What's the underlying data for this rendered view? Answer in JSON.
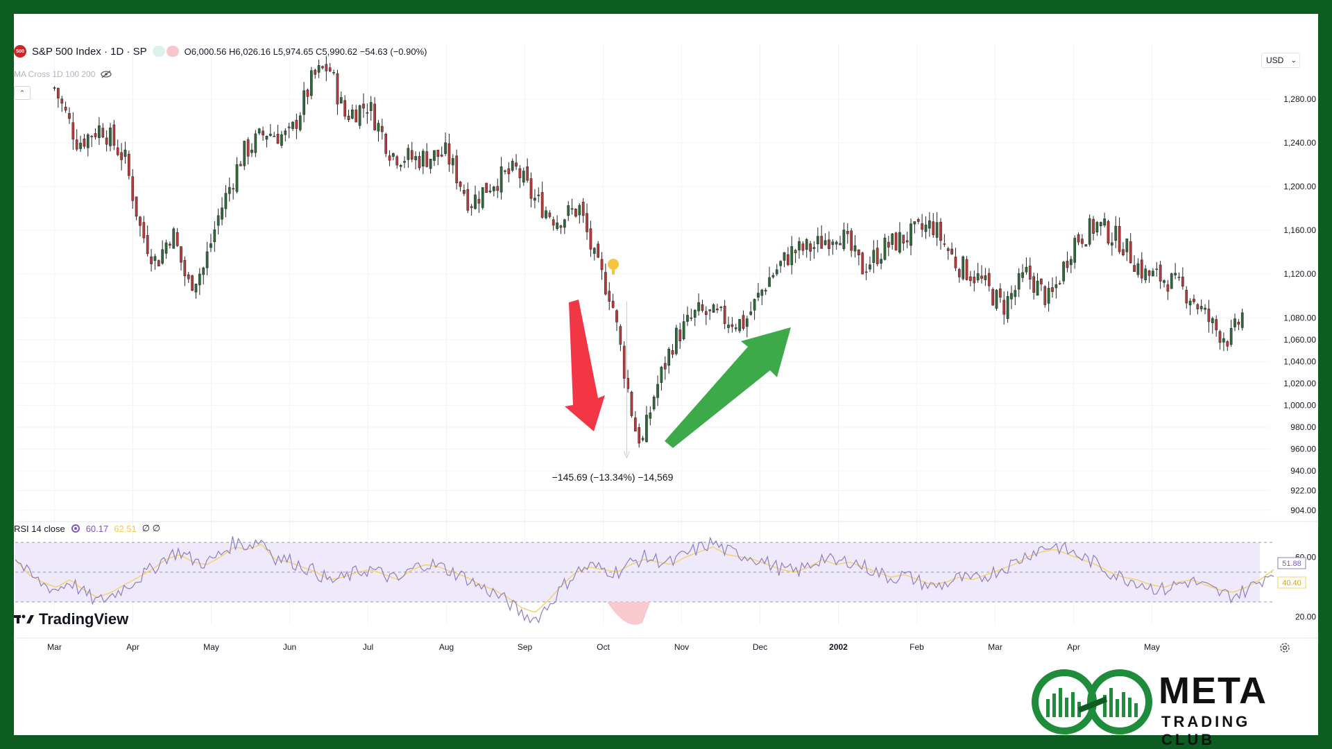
{
  "header": {
    "symbol_badge": "500",
    "symbol_title": "S&P 500 Index · 1D · SP",
    "ohlc": "O6,000.56  H6,026.16  L5,974.65  C5,990.62  −54.63 (−0.90%)",
    "indicator_label": "MA Cross 1D 100 200",
    "currency": "USD"
  },
  "annotation": {
    "measure_text": "−145.69 (−13.34%) −14,569"
  },
  "rsi": {
    "label": "RSI 14 close",
    "value1": "60.17",
    "value2": "62.51",
    "value3": "∅ ∅",
    "badge_rsi": "51.88",
    "badge_ma": "40.40"
  },
  "branding": {
    "tradingview": "TradingView",
    "meta_title": "META",
    "meta_subtitle": "TRADING CLUB"
  },
  "colors": {
    "up": "#2e6b3a",
    "down": "#b93a3a",
    "rsi_line": "#8e7cc3",
    "rsi_ma": "#f2d36b",
    "rsi_band": "#efeafb",
    "arrow_down": "#f23645",
    "arrow_up": "#3daa4a",
    "frame": "#0d5c22"
  },
  "chart_data": {
    "type": "candlestick",
    "title": "S&P 500 Index · 1D · SP",
    "x_ticks": [
      "Mar",
      "Apr",
      "May",
      "Jun",
      "Jul",
      "Aug",
      "Sep",
      "Oct",
      "Nov",
      "Dec",
      "2002",
      "Feb",
      "Mar",
      "Apr",
      "May"
    ],
    "y_ticks": [
      904,
      922,
      940,
      960,
      980,
      1000,
      1020,
      1040,
      1060,
      1080,
      1120,
      1160,
      1200,
      1240,
      1280
    ],
    "y_tick_labels": [
      "904.00",
      "922.00",
      "940.00",
      "960.00",
      "980.00",
      "1,000.00",
      "1,020.00",
      "1,040.00",
      "1,060.00",
      "1,080.00",
      "1,120.00",
      "1,160.00",
      "1,200.00",
      "1,240.00",
      "1,280.00"
    ],
    "ylim": [
      895,
      1330
    ],
    "close_path": [
      {
        "month": 0.0,
        "close": 1290
      },
      {
        "month": 0.3,
        "close": 1240
      },
      {
        "month": 0.6,
        "close": 1255
      },
      {
        "month": 0.9,
        "close": 1225
      },
      {
        "month": 1.1,
        "close": 1160
      },
      {
        "month": 1.3,
        "close": 1130
      },
      {
        "month": 1.5,
        "close": 1160
      },
      {
        "month": 1.7,
        "close": 1110
      },
      {
        "month": 1.9,
        "close": 1125
      },
      {
        "month": 2.1,
        "close": 1175
      },
      {
        "month": 2.4,
        "close": 1230
      },
      {
        "month": 2.7,
        "close": 1250
      },
      {
        "month": 3.0,
        "close": 1245
      },
      {
        "month": 3.3,
        "close": 1300
      },
      {
        "month": 3.5,
        "close": 1310
      },
      {
        "month": 3.7,
        "close": 1265
      },
      {
        "month": 4.0,
        "close": 1275
      },
      {
        "month": 4.3,
        "close": 1230
      },
      {
        "month": 4.6,
        "close": 1225
      },
      {
        "month": 5.0,
        "close": 1230
      },
      {
        "month": 5.3,
        "close": 1185
      },
      {
        "month": 5.6,
        "close": 1205
      },
      {
        "month": 5.9,
        "close": 1215
      },
      {
        "month": 6.1,
        "close": 1190
      },
      {
        "month": 6.4,
        "close": 1170
      },
      {
        "month": 6.7,
        "close": 1180
      },
      {
        "month": 6.9,
        "close": 1130
      },
      {
        "month": 7.1,
        "close": 1100
      },
      {
        "month": 7.25,
        "close": 1040
      },
      {
        "month": 7.4,
        "close": 980
      },
      {
        "month": 7.5,
        "close": 965
      },
      {
        "month": 7.65,
        "close": 1010
      },
      {
        "month": 7.9,
        "close": 1060
      },
      {
        "month": 8.2,
        "close": 1085
      },
      {
        "month": 8.5,
        "close": 1080
      },
      {
        "month": 8.8,
        "close": 1075
      },
      {
        "month": 9.1,
        "close": 1115
      },
      {
        "month": 9.4,
        "close": 1140
      },
      {
        "month": 9.7,
        "close": 1145
      },
      {
        "month": 10.0,
        "close": 1160
      },
      {
        "month": 10.3,
        "close": 1125
      },
      {
        "month": 10.6,
        "close": 1145
      },
      {
        "month": 10.9,
        "close": 1155
      },
      {
        "month": 11.2,
        "close": 1165
      },
      {
        "month": 11.5,
        "close": 1130
      },
      {
        "month": 11.8,
        "close": 1115
      },
      {
        "month": 12.1,
        "close": 1090
      },
      {
        "month": 12.4,
        "close": 1120
      },
      {
        "month": 12.7,
        "close": 1095
      },
      {
        "month": 13.0,
        "close": 1150
      },
      {
        "month": 13.3,
        "close": 1165
      },
      {
        "month": 13.6,
        "close": 1150
      },
      {
        "month": 13.9,
        "close": 1120
      },
      {
        "month": 14.2,
        "close": 1115
      },
      {
        "month": 14.5,
        "close": 1100
      },
      {
        "month": 14.8,
        "close": 1070
      },
      {
        "month": 15.0,
        "close": 1060
      },
      {
        "month": 15.2,
        "close": 1090
      }
    ],
    "drawdown_annotation": "−145.69 (−13.34%) −14,569",
    "rsi_y_ticks": [
      20,
      60
    ],
    "rsi_y_tick_labels": [
      "20.00",
      "60.00"
    ],
    "rsi_levels": [
      70,
      50,
      30
    ],
    "rsi_ylim": [
      15,
      78
    ],
    "rsi_series": [
      60,
      48,
      42,
      38,
      44,
      36,
      30,
      34,
      40,
      46,
      52,
      60,
      64,
      58,
      56,
      62,
      70,
      68,
      72,
      60,
      58,
      54,
      50,
      44,
      46,
      50,
      52,
      48,
      44,
      52,
      56,
      54,
      50,
      46,
      40,
      36,
      30,
      22,
      18,
      28,
      40,
      50,
      54,
      52,
      50,
      56,
      60,
      58,
      56,
      62,
      66,
      70,
      64,
      62,
      60,
      56,
      52,
      50,
      54,
      60,
      56,
      58,
      54,
      50,
      46,
      48,
      44,
      40,
      42,
      46,
      44,
      48,
      52,
      56,
      62,
      66,
      68,
      64,
      60,
      56,
      50,
      46,
      44,
      40,
      38,
      42,
      44,
      40,
      36,
      34,
      38,
      44,
      52
    ]
  }
}
